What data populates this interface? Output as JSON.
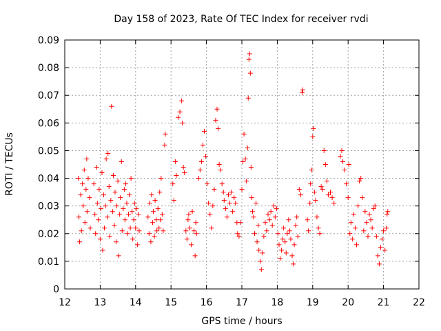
{
  "chart_data": {
    "type": "scatter",
    "title": "Day 158 of 2023, Rate Of TEC Index for receiver rvdi",
    "xlabel": "GPS time / hours",
    "ylabel": "ROTI / TECUs",
    "xlim": [
      12,
      22
    ],
    "ylim": [
      0,
      0.09
    ],
    "grid": true,
    "marker": "+",
    "point_color": "#ff0000",
    "x_ticks": [
      12,
      13,
      14,
      15,
      16,
      17,
      18,
      19,
      20,
      21,
      22
    ],
    "x_tick_labels": [
      "12",
      "13",
      "14",
      "15",
      "16",
      "17",
      "18",
      "19",
      "20",
      "21",
      "22"
    ],
    "y_ticks": [
      0,
      0.01,
      0.02,
      0.03,
      0.04,
      0.05,
      0.06,
      0.07,
      0.08,
      0.09
    ],
    "y_tick_labels": [
      "0",
      "0.01",
      "0.02",
      "0.03",
      "0.04",
      "0.05",
      "0.06",
      "0.07",
      "0.08",
      "0.09"
    ],
    "series": [
      {
        "name": "ROTI",
        "points": [
          [
            12.38,
            0.04
          ],
          [
            12.4,
            0.026
          ],
          [
            12.42,
            0.017
          ],
          [
            12.45,
            0.034
          ],
          [
            12.47,
            0.021
          ],
          [
            12.5,
            0.038
          ],
          [
            12.52,
            0.03
          ],
          [
            12.55,
            0.043
          ],
          [
            12.57,
            0.024
          ],
          [
            12.6,
            0.036
          ],
          [
            12.62,
            0.047
          ],
          [
            12.63,
            0.028
          ],
          [
            12.66,
            0.04
          ],
          [
            12.7,
            0.033
          ],
          [
            12.72,
            0.022
          ],
          [
            12.82,
            0.038
          ],
          [
            12.85,
            0.027
          ],
          [
            12.87,
            0.02
          ],
          [
            12.9,
            0.044
          ],
          [
            12.92,
            0.031
          ],
          [
            12.95,
            0.025
          ],
          [
            12.97,
            0.036
          ],
          [
            13.0,
            0.018
          ],
          [
            13.02,
            0.029
          ],
          [
            13.05,
            0.042
          ],
          [
            13.07,
            0.014
          ],
          [
            13.1,
            0.034
          ],
          [
            13.12,
            0.022
          ],
          [
            13.15,
            0.03
          ],
          [
            13.17,
            0.047
          ],
          [
            13.2,
            0.026
          ],
          [
            13.22,
            0.049
          ],
          [
            13.25,
            0.037
          ],
          [
            13.27,
            0.019
          ],
          [
            13.3,
            0.032
          ],
          [
            13.32,
            0.066
          ],
          [
            13.35,
            0.028
          ],
          [
            13.37,
            0.041
          ],
          [
            13.4,
            0.023
          ],
          [
            13.42,
            0.035
          ],
          [
            13.45,
            0.017
          ],
          [
            13.47,
            0.03
          ],
          [
            13.5,
            0.039
          ],
          [
            13.52,
            0.012
          ],
          [
            13.55,
            0.027
          ],
          [
            13.57,
            0.033
          ],
          [
            13.6,
            0.046
          ],
          [
            13.62,
            0.021
          ],
          [
            13.65,
            0.029
          ],
          [
            13.68,
            0.036
          ],
          [
            13.7,
            0.025
          ],
          [
            13.72,
            0.038
          ],
          [
            13.75,
            0.031
          ],
          [
            13.77,
            0.02
          ],
          [
            13.8,
            0.027
          ],
          [
            13.82,
            0.034
          ],
          [
            13.85,
            0.022
          ],
          [
            13.87,
            0.04
          ],
          [
            13.9,
            0.028
          ],
          [
            13.92,
            0.018
          ],
          [
            13.95,
            0.025
          ],
          [
            13.97,
            0.031
          ],
          [
            14.0,
            0.022
          ],
          [
            14.02,
            0.029
          ],
          [
            14.05,
            0.016
          ],
          [
            14.08,
            0.027
          ],
          [
            14.1,
            0.021
          ],
          [
            14.35,
            0.026
          ],
          [
            14.38,
            0.02
          ],
          [
            14.4,
            0.031
          ],
          [
            14.43,
            0.017
          ],
          [
            14.45,
            0.034
          ],
          [
            14.48,
            0.024
          ],
          [
            14.5,
            0.028
          ],
          [
            14.53,
            0.019
          ],
          [
            14.55,
            0.032
          ],
          [
            14.58,
            0.025
          ],
          [
            14.6,
            0.021
          ],
          [
            14.63,
            0.029
          ],
          [
            14.66,
            0.022
          ],
          [
            14.68,
            0.035
          ],
          [
            14.7,
            0.025
          ],
          [
            14.72,
            0.04
          ],
          [
            14.75,
            0.027
          ],
          [
            14.78,
            0.021
          ],
          [
            14.82,
            0.052
          ],
          [
            14.84,
            0.056
          ],
          [
            15.05,
            0.038
          ],
          [
            15.08,
            0.032
          ],
          [
            15.12,
            0.046
          ],
          [
            15.15,
            0.041
          ],
          [
            15.2,
            0.062
          ],
          [
            15.25,
            0.064
          ],
          [
            15.3,
            0.068
          ],
          [
            15.32,
            0.06
          ],
          [
            15.35,
            0.044
          ],
          [
            15.38,
            0.042
          ],
          [
            15.42,
            0.021
          ],
          [
            15.45,
            0.018
          ],
          [
            15.48,
            0.025
          ],
          [
            15.5,
            0.027
          ],
          [
            15.53,
            0.022
          ],
          [
            15.57,
            0.016
          ],
          [
            15.6,
            0.028
          ],
          [
            15.65,
            0.021
          ],
          [
            15.68,
            0.012
          ],
          [
            15.7,
            0.024
          ],
          [
            15.72,
            0.02
          ],
          [
            15.78,
            0.04
          ],
          [
            15.82,
            0.043
          ],
          [
            15.86,
            0.046
          ],
          [
            15.9,
            0.052
          ],
          [
            15.94,
            0.057
          ],
          [
            15.98,
            0.048
          ],
          [
            16.02,
            0.038
          ],
          [
            16.06,
            0.031
          ],
          [
            16.1,
            0.027
          ],
          [
            16.14,
            0.022
          ],
          [
            16.18,
            0.03
          ],
          [
            16.22,
            0.036
          ],
          [
            16.26,
            0.061
          ],
          [
            16.3,
            0.065
          ],
          [
            16.33,
            0.058
          ],
          [
            16.36,
            0.045
          ],
          [
            16.4,
            0.043
          ],
          [
            16.44,
            0.038
          ],
          [
            16.48,
            0.035
          ],
          [
            16.5,
            0.032
          ],
          [
            16.54,
            0.029
          ],
          [
            16.58,
            0.026
          ],
          [
            16.62,
            0.034
          ],
          [
            16.66,
            0.031
          ],
          [
            16.7,
            0.035
          ],
          [
            16.74,
            0.028
          ],
          [
            16.78,
            0.033
          ],
          [
            16.82,
            0.031
          ],
          [
            16.86,
            0.024
          ],
          [
            16.88,
            0.02
          ],
          [
            16.92,
            0.019
          ],
          [
            16.96,
            0.024
          ],
          [
            17.0,
            0.036
          ],
          [
            17.03,
            0.046
          ],
          [
            17.06,
            0.056
          ],
          [
            17.1,
            0.047
          ],
          [
            17.13,
            0.039
          ],
          [
            17.16,
            0.051
          ],
          [
            17.18,
            0.069
          ],
          [
            17.2,
            0.083
          ],
          [
            17.22,
            0.085
          ],
          [
            17.24,
            0.078
          ],
          [
            17.26,
            0.044
          ],
          [
            17.28,
            0.033
          ],
          [
            17.3,
            0.028
          ],
          [
            17.33,
            0.026
          ],
          [
            17.36,
            0.02
          ],
          [
            17.4,
            0.031
          ],
          [
            17.43,
            0.017
          ],
          [
            17.46,
            0.023
          ],
          [
            17.48,
            0.014
          ],
          [
            17.52,
            0.01
          ],
          [
            17.55,
            0.007
          ],
          [
            17.58,
            0.013
          ],
          [
            17.62,
            0.019
          ],
          [
            17.66,
            0.024
          ],
          [
            17.7,
            0.021
          ],
          [
            17.74,
            0.027
          ],
          [
            17.78,
            0.025
          ],
          [
            17.82,
            0.028
          ],
          [
            17.86,
            0.023
          ],
          [
            17.9,
            0.03
          ],
          [
            17.94,
            0.026
          ],
          [
            17.98,
            0.029
          ],
          [
            18.02,
            0.02
          ],
          [
            18.05,
            0.016
          ],
          [
            18.08,
            0.011
          ],
          [
            18.12,
            0.014
          ],
          [
            18.15,
            0.018
          ],
          [
            18.18,
            0.022
          ],
          [
            18.22,
            0.017
          ],
          [
            18.25,
            0.013
          ],
          [
            18.28,
            0.02
          ],
          [
            18.32,
            0.025
          ],
          [
            18.35,
            0.021
          ],
          [
            18.38,
            0.018
          ],
          [
            18.42,
            0.012
          ],
          [
            18.45,
            0.009
          ],
          [
            18.48,
            0.016
          ],
          [
            18.52,
            0.023
          ],
          [
            18.55,
            0.026
          ],
          [
            18.58,
            0.019
          ],
          [
            18.62,
            0.036
          ],
          [
            18.66,
            0.034
          ],
          [
            18.7,
            0.071
          ],
          [
            18.72,
            0.072
          ],
          [
            18.85,
            0.025
          ],
          [
            18.88,
            0.021
          ],
          [
            18.92,
            0.031
          ],
          [
            18.94,
            0.038
          ],
          [
            18.97,
            0.043
          ],
          [
            19.0,
            0.055
          ],
          [
            19.02,
            0.058
          ],
          [
            19.05,
            0.035
          ],
          [
            19.08,
            0.032
          ],
          [
            19.12,
            0.026
          ],
          [
            19.16,
            0.022
          ],
          [
            19.2,
            0.02
          ],
          [
            19.24,
            0.037
          ],
          [
            19.28,
            0.036
          ],
          [
            19.32,
            0.05
          ],
          [
            19.36,
            0.045
          ],
          [
            19.4,
            0.039
          ],
          [
            19.44,
            0.034
          ],
          [
            19.5,
            0.035
          ],
          [
            19.55,
            0.033
          ],
          [
            19.6,
            0.031
          ],
          [
            19.78,
            0.048
          ],
          [
            19.82,
            0.05
          ],
          [
            19.85,
            0.046
          ],
          [
            19.9,
            0.043
          ],
          [
            19.95,
            0.038
          ],
          [
            20.0,
            0.033
          ],
          [
            20.02,
            0.045
          ],
          [
            20.05,
            0.02
          ],
          [
            20.08,
            0.024
          ],
          [
            20.12,
            0.018
          ],
          [
            20.16,
            0.027
          ],
          [
            20.2,
            0.022
          ],
          [
            20.24,
            0.016
          ],
          [
            20.28,
            0.03
          ],
          [
            20.32,
            0.039
          ],
          [
            20.36,
            0.04
          ],
          [
            20.4,
            0.033
          ],
          [
            20.44,
            0.021
          ],
          [
            20.48,
            0.028
          ],
          [
            20.52,
            0.024
          ],
          [
            20.56,
            0.019
          ],
          [
            20.6,
            0.027
          ],
          [
            20.64,
            0.025
          ],
          [
            20.68,
            0.022
          ],
          [
            20.72,
            0.029
          ],
          [
            20.76,
            0.03
          ],
          [
            20.8,
            0.019
          ],
          [
            20.84,
            0.012
          ],
          [
            20.88,
            0.009
          ],
          [
            20.92,
            0.015
          ],
          [
            20.96,
            0.018
          ],
          [
            21.0,
            0.021
          ],
          [
            21.04,
            0.014
          ],
          [
            21.08,
            0.022
          ],
          [
            21.1,
            0.027
          ],
          [
            21.12,
            0.028
          ]
        ]
      }
    ]
  }
}
